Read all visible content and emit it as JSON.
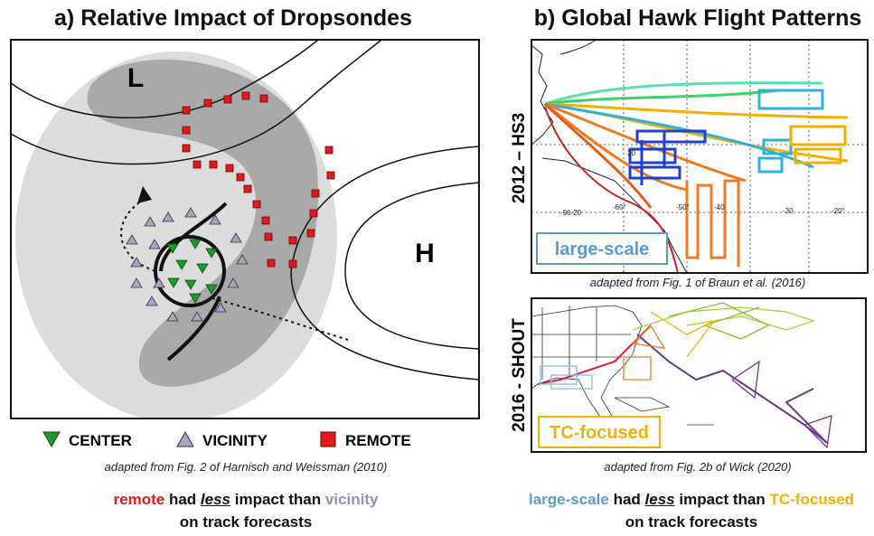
{
  "panel_a": {
    "title": "a) Relative Impact of Dropsondes",
    "low_label": "L",
    "high_label": "H",
    "legend": [
      "CENTER",
      "VICINITY",
      "REMOTE"
    ],
    "credit": "adapted from Fig. 2 of Harnisch and Weissman (2010)",
    "conclusion": {
      "subject": "remote",
      "verb": "had",
      "emphasis": "less",
      "middle": "impact than",
      "object": "vicinity",
      "line2": "on track forecasts"
    }
  },
  "panel_b": {
    "title": "b) Global Hawk Flight Patterns",
    "map1": {
      "side_label": "2012 – HS3",
      "tag": "large-scale",
      "credit": "adapted from Fig. 1 of Braun et al. (2016)",
      "map_labels": [
        "30",
        "-90-20",
        "-60°",
        "-50°",
        "-40",
        "-30",
        "-20°"
      ]
    },
    "map2": {
      "side_label": "2016 - SHOUT",
      "tag": "TC-focused",
      "credit": "adapted from Fig. 2b of Wick (2020)"
    },
    "conclusion": {
      "subject": "large-scale",
      "verb": "had",
      "emphasis": "less",
      "middle": "impact than",
      "object": "TC-focused",
      "line2": "on track forecasts"
    }
  }
}
